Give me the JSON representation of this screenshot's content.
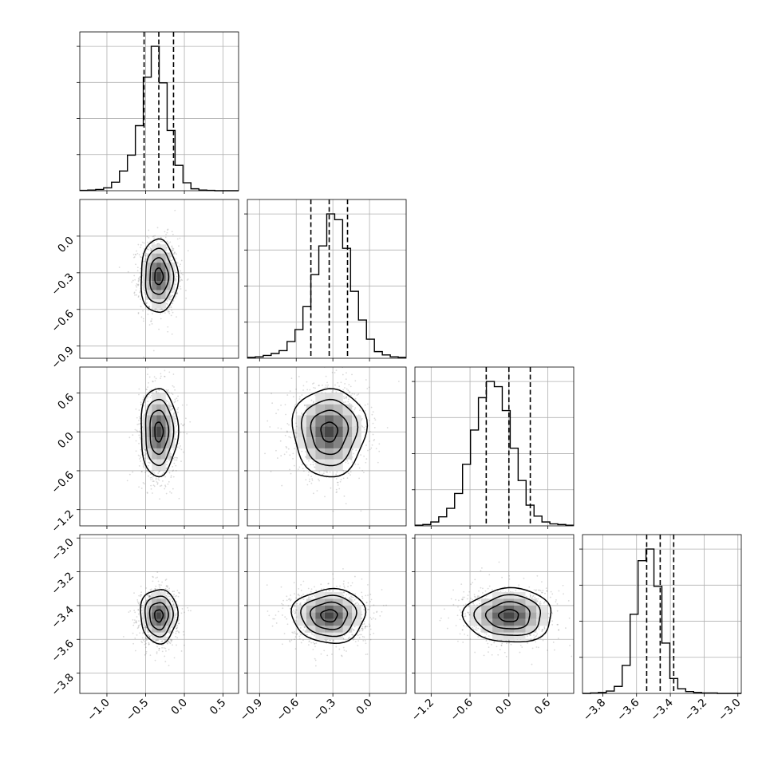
{
  "chart_data": {
    "type": "corner",
    "grid": true,
    "n_params": 4,
    "colors": {
      "frame": "#000000",
      "grid": "#b0b0b0",
      "density": "#000000",
      "scatter": "#555555"
    },
    "parameters": [
      {
        "range": [
          -1.35,
          0.7
        ],
        "ticks": [
          -1.0,
          -0.5,
          0.0,
          0.5
        ],
        "tick_labels": [
          "−1.0",
          "−0.5",
          "0.0",
          "0.5"
        ],
        "quantiles": [
          -0.52,
          -0.33,
          -0.14
        ],
        "mean": -0.33,
        "std": 0.12,
        "hist_counts": [
          1,
          2,
          4,
          9,
          27,
          62,
          112,
          205,
          358,
          455,
          340,
          190,
          80,
          25,
          6,
          2,
          1,
          0,
          0,
          0
        ]
      },
      {
        "range": [
          -1.0,
          0.3
        ],
        "ticks": [
          -0.9,
          -0.6,
          -0.3,
          0.0
        ],
        "tick_labels": [
          "−0.9",
          "−0.6",
          "−0.3",
          "0.0"
        ],
        "quantiles": [
          -0.48,
          -0.33,
          -0.18
        ],
        "mean": -0.33,
        "std": 0.15,
        "hist_counts": [
          2,
          3,
          6,
          10,
          16,
          35,
          60,
          108,
          175,
          235,
          302,
          290,
          230,
          140,
          80,
          40,
          14,
          7,
          3,
          2
        ]
      },
      {
        "range": [
          -1.45,
          1.0
        ],
        "ticks": [
          -1.2,
          -0.6,
          0.0,
          0.6
        ],
        "tick_labels": [
          "−1.2",
          "−0.6",
          "0.0",
          "0.6"
        ],
        "quantiles": [
          -0.35,
          0.0,
          0.33
        ],
        "mean": 0.0,
        "std": 0.34,
        "hist_counts": [
          1,
          2,
          6,
          14,
          27,
          50,
          95,
          148,
          198,
          223,
          215,
          178,
          120,
          70,
          32,
          15,
          6,
          3,
          2,
          1
        ]
      },
      {
        "range": [
          -3.92,
          -2.98
        ],
        "ticks": [
          -3.8,
          -3.6,
          -3.4,
          -3.2,
          -3.0
        ],
        "tick_labels": [
          "−3.8",
          "−3.6",
          "−3.4",
          "−3.2",
          "−3.0"
        ],
        "quantiles": [
          -3.54,
          -3.46,
          -3.38
        ],
        "mean": -3.46,
        "std": 0.08,
        "hist_counts": [
          0,
          1,
          2,
          5,
          15,
          60,
          170,
          285,
          310,
          230,
          108,
          32,
          10,
          4,
          2,
          1,
          1,
          0,
          0,
          0
        ]
      }
    ]
  }
}
